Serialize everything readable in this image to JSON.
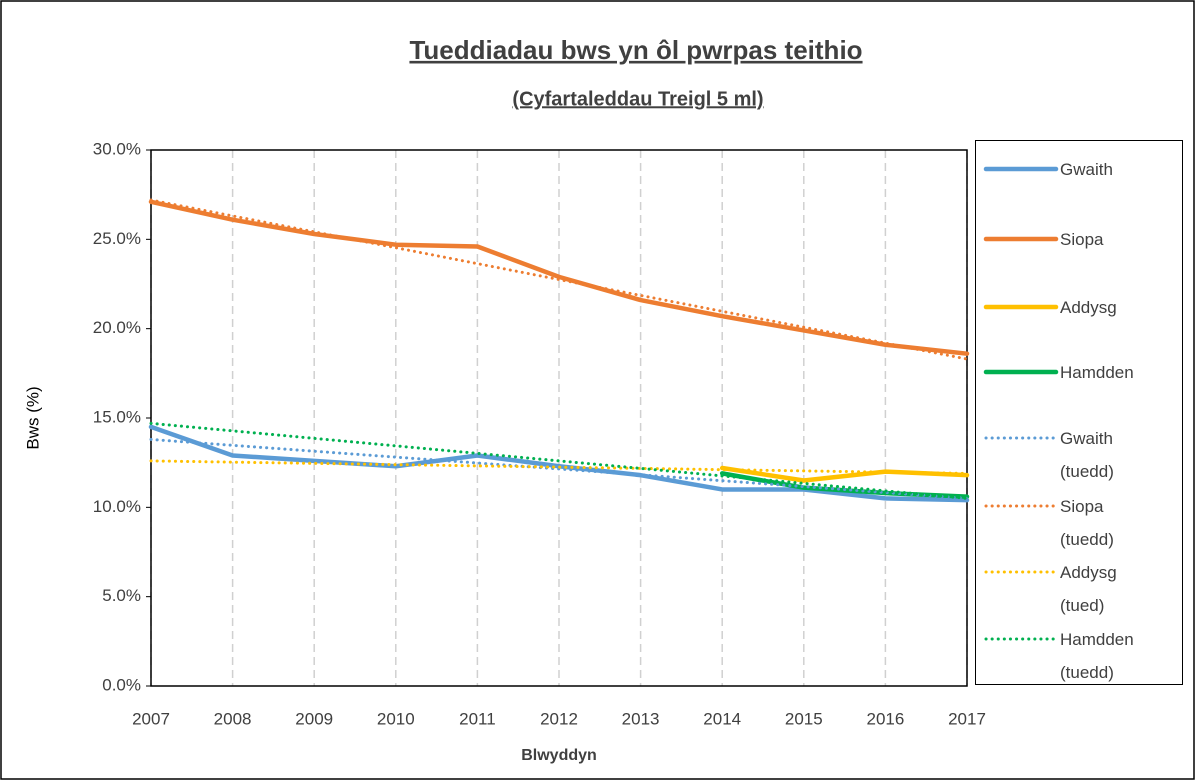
{
  "chart_data": {
    "type": "line",
    "title": "Tueddiadau bws yn ôl pwrpas teithio",
    "subtitle": "(Cyfartaleddau Treigl 5 ml)",
    "x_label": "Blwyddyn",
    "y_label": "Bws (%)",
    "x": [
      2007,
      2008,
      2009,
      2010,
      2011,
      2012,
      2013,
      2014,
      2015,
      2016,
      2017
    ],
    "xlim": [
      2007,
      2017
    ],
    "xticks": [
      2007,
      2008,
      2009,
      2010,
      2011,
      2012,
      2013,
      2014,
      2015,
      2016,
      2017
    ],
    "ylim": [
      0,
      30
    ],
    "yticks": [
      {
        "value": 0,
        "label": "0.0%"
      },
      {
        "value": 5,
        "label": "5.0%"
      },
      {
        "value": 10,
        "label": "10.0%"
      },
      {
        "value": 15,
        "label": "15.0%"
      },
      {
        "value": 20,
        "label": "20.0%"
      },
      {
        "value": 25,
        "label": "25.0%"
      },
      {
        "value": 30,
        "label": "30.0%"
      }
    ],
    "grid": "x",
    "legend": "right",
    "series": [
      {
        "name": "Gwaith",
        "color": "#5b9bd5",
        "style": "solid",
        "values": [
          14.5,
          12.9,
          12.6,
          12.3,
          12.9,
          12.3,
          11.8,
          11.0,
          11.0,
          10.5,
          10.4
        ]
      },
      {
        "name": "Siopa",
        "color": "#ed7d31",
        "style": "solid",
        "values": [
          27.1,
          26.1,
          25.3,
          24.7,
          24.6,
          22.9,
          21.6,
          20.7,
          19.9,
          19.1,
          18.6
        ]
      },
      {
        "name": "Addysg",
        "color": "#ffc000",
        "style": "solid",
        "values": [
          null,
          null,
          null,
          null,
          null,
          null,
          null,
          12.2,
          11.5,
          12.0,
          11.8
        ]
      },
      {
        "name": "Hamdden",
        "color": "#00b050",
        "style": "solid",
        "values": [
          null,
          null,
          null,
          null,
          null,
          null,
          null,
          11.9,
          11.1,
          10.8,
          10.6
        ]
      },
      {
        "name": "Gwaith (tuedd)",
        "color": "#5b9bd5",
        "style": "dotted",
        "values": [
          13.8,
          13.47,
          13.14,
          12.81,
          12.48,
          12.15,
          11.82,
          11.49,
          11.16,
          10.83,
          10.5
        ]
      },
      {
        "name": "Siopa (tuedd)",
        "color": "#ed7d31",
        "style": "dotted",
        "values": [
          27.2,
          26.31,
          25.42,
          24.53,
          23.64,
          22.75,
          21.86,
          20.97,
          20.08,
          19.19,
          18.3
        ]
      },
      {
        "name": "Addysg (tued)",
        "color": "#ffc000",
        "style": "dotted",
        "values": [
          12.6,
          12.53,
          12.46,
          12.39,
          12.32,
          12.25,
          12.18,
          12.11,
          12.04,
          11.97,
          11.9
        ]
      },
      {
        "name": "Hamdden (tuedd)",
        "color": "#00b050",
        "style": "dotted",
        "values": [
          14.7,
          14.28,
          13.86,
          13.44,
          13.02,
          12.6,
          12.18,
          11.76,
          11.34,
          10.92,
          10.5
        ]
      }
    ]
  }
}
